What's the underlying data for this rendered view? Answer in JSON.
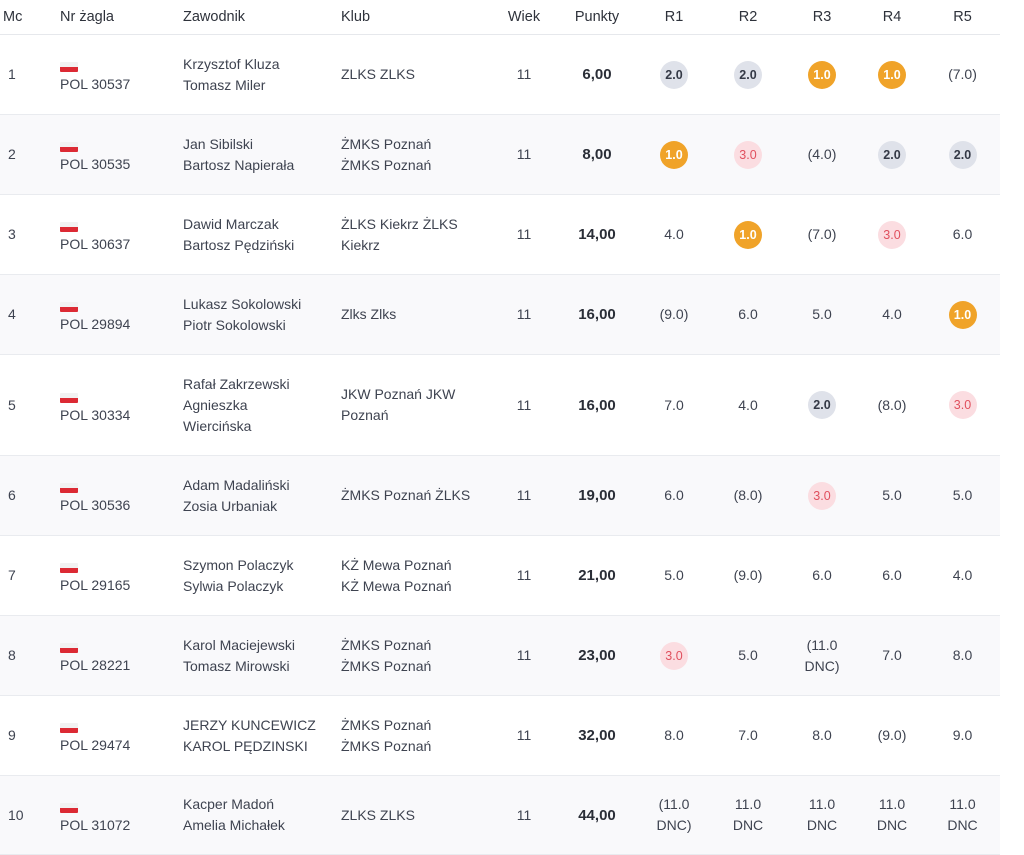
{
  "headers": {
    "mc": "Mc",
    "sail": "Nr żagla",
    "sailor": "Zawodnik",
    "club": "Klub",
    "age": "Wiek",
    "points": "Punkty",
    "r1": "R1",
    "r2": "R2",
    "r3": "R3",
    "r4": "R4",
    "r5": "R5"
  },
  "rows": [
    {
      "mc": "1",
      "sail": "POL 30537",
      "sailor1": "Krzysztof Kluza",
      "sailor2": "Tomasz Miler",
      "club1": "ZLKS ZLKS",
      "club2": "",
      "age": "11",
      "points": "6,00",
      "r": [
        {
          "t": "2.0",
          "s": "grey"
        },
        {
          "t": "2.0",
          "s": "grey"
        },
        {
          "t": "1.0",
          "s": "gold"
        },
        {
          "t": "1.0",
          "s": "gold"
        },
        {
          "t": "(7.0)",
          "s": "plain"
        }
      ]
    },
    {
      "mc": "2",
      "sail": "POL 30535",
      "sailor1": "Jan Sibilski",
      "sailor2": "Bartosz Napierała",
      "club1": "ŻMKS Poznań",
      "club2": "ŻMKS Poznań",
      "age": "11",
      "points": "8,00",
      "r": [
        {
          "t": "1.0",
          "s": "gold"
        },
        {
          "t": "3.0",
          "s": "pink"
        },
        {
          "t": "(4.0)",
          "s": "plain"
        },
        {
          "t": "2.0",
          "s": "grey"
        },
        {
          "t": "2.0",
          "s": "grey"
        }
      ]
    },
    {
      "mc": "3",
      "sail": "POL 30637",
      "sailor1": "Dawid Marczak",
      "sailor2": "Bartosz Pędziński",
      "club1": "ŻLKS Kiekrz ŻLKS",
      "club2": "Kiekrz",
      "age": "11",
      "points": "14,00",
      "r": [
        {
          "t": "4.0",
          "s": "plain"
        },
        {
          "t": "1.0",
          "s": "gold"
        },
        {
          "t": "(7.0)",
          "s": "plain"
        },
        {
          "t": "3.0",
          "s": "pink"
        },
        {
          "t": "6.0",
          "s": "plain"
        }
      ]
    },
    {
      "mc": "4",
      "sail": "POL 29894",
      "sailor1": "Lukasz Sokolowski",
      "sailor2": "Piotr Sokolowski",
      "club1": "Zlks Zlks",
      "club2": "",
      "age": "11",
      "points": "16,00",
      "r": [
        {
          "t": "(9.0)",
          "s": "plain"
        },
        {
          "t": "6.0",
          "s": "plain"
        },
        {
          "t": "5.0",
          "s": "plain"
        },
        {
          "t": "4.0",
          "s": "plain"
        },
        {
          "t": "1.0",
          "s": "gold"
        }
      ]
    },
    {
      "mc": "5",
      "sail": "POL 30334",
      "sailor1": "Rafał Zakrzewski",
      "sailor2": "Agnieszka",
      "sailor3": "Wiercińska",
      "club1": "JKW Poznań JKW",
      "club2": "Poznań",
      "age": "11",
      "points": "16,00",
      "r": [
        {
          "t": "7.0",
          "s": "plain"
        },
        {
          "t": "4.0",
          "s": "plain"
        },
        {
          "t": "2.0",
          "s": "grey"
        },
        {
          "t": "(8.0)",
          "s": "plain"
        },
        {
          "t": "3.0",
          "s": "pink"
        }
      ]
    },
    {
      "mc": "6",
      "sail": "POL 30536",
      "sailor1": "Adam Madaliński",
      "sailor2": "Zosia Urbaniak",
      "club1": "ŻMKS Poznań ŻLKS",
      "club2": "",
      "age": "11",
      "points": "19,00",
      "r": [
        {
          "t": "6.0",
          "s": "plain"
        },
        {
          "t": "(8.0)",
          "s": "plain"
        },
        {
          "t": "3.0",
          "s": "pink"
        },
        {
          "t": "5.0",
          "s": "plain"
        },
        {
          "t": "5.0",
          "s": "plain"
        }
      ]
    },
    {
      "mc": "7",
      "sail": "POL 29165",
      "sailor1": "Szymon Polaczyk",
      "sailor2": "Sylwia Polaczyk",
      "club1": "KŻ Mewa Poznań",
      "club2": "KŻ Mewa Poznań",
      "age": "11",
      "points": "21,00",
      "r": [
        {
          "t": "5.0",
          "s": "plain"
        },
        {
          "t": "(9.0)",
          "s": "plain"
        },
        {
          "t": "6.0",
          "s": "plain"
        },
        {
          "t": "6.0",
          "s": "plain"
        },
        {
          "t": "4.0",
          "s": "plain"
        }
      ]
    },
    {
      "mc": "8",
      "sail": "POL 28221",
      "sailor1": "Karol Maciejewski",
      "sailor2": "Tomasz Mirowski",
      "club1": "ŻMKS Poznań",
      "club2": "ŻMKS Poznań",
      "age": "11",
      "points": "23,00",
      "r": [
        {
          "t": "3.0",
          "s": "pink"
        },
        {
          "t": "5.0",
          "s": "plain"
        },
        {
          "t": "(11.0",
          "t2": "DNC)",
          "s": "plain"
        },
        {
          "t": "7.0",
          "s": "plain"
        },
        {
          "t": "8.0",
          "s": "plain"
        }
      ]
    },
    {
      "mc": "9",
      "sail": "POL 29474",
      "sailor1": "JERZY KUNCEWICZ",
      "sailor2": "KAROL PĘDZINSKI",
      "club1": "ŻMKS Poznań",
      "club2": "ŻMKS Poznań",
      "age": "11",
      "points": "32,00",
      "r": [
        {
          "t": "8.0",
          "s": "plain"
        },
        {
          "t": "7.0",
          "s": "plain"
        },
        {
          "t": "8.0",
          "s": "plain"
        },
        {
          "t": "(9.0)",
          "s": "plain"
        },
        {
          "t": "9.0",
          "s": "plain"
        }
      ]
    },
    {
      "mc": "10",
      "sail": "POL 31072",
      "sailor1": "Kacper Madoń",
      "sailor2": "Amelia Michałek",
      "club1": "ZLKS ZLKS",
      "club2": "",
      "age": "11",
      "points": "44,00",
      "r": [
        {
          "t": "(11.0",
          "t2": "DNC)",
          "s": "plain"
        },
        {
          "t": "11.0",
          "t2": "DNC",
          "s": "plain"
        },
        {
          "t": "11.0",
          "t2": "DNC",
          "s": "plain"
        },
        {
          "t": "11.0",
          "t2": "DNC",
          "s": "plain"
        },
        {
          "t": "11.0",
          "t2": "DNC",
          "s": "plain"
        }
      ]
    }
  ]
}
